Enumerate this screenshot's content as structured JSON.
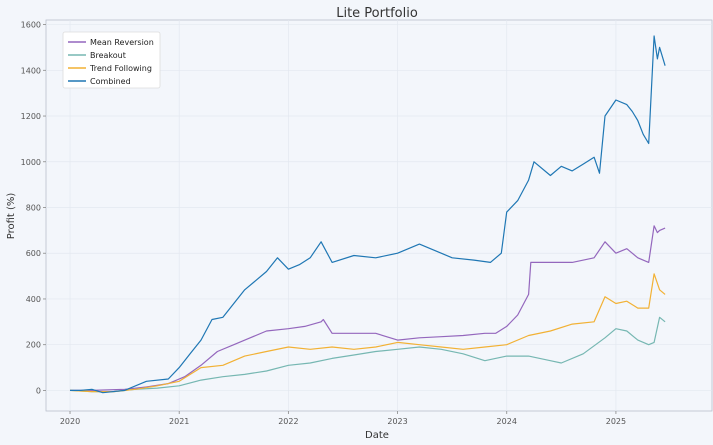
{
  "chart_data": {
    "type": "line",
    "title": "Lite Portfolio",
    "xlabel": "Date",
    "ylabel": "Profit (%)",
    "xlim": [
      2019.78,
      2025.88
    ],
    "ylim": [
      -90,
      1620
    ],
    "x_ticks": [
      {
        "value": 2020,
        "label": "2020"
      },
      {
        "value": 2021,
        "label": "2021"
      },
      {
        "value": 2022,
        "label": "2022"
      },
      {
        "value": 2023,
        "label": "2023"
      },
      {
        "value": 2024,
        "label": "2024"
      },
      {
        "value": 2025,
        "label": "2025"
      }
    ],
    "y_ticks": [
      {
        "value": 0,
        "label": "0"
      },
      {
        "value": 200,
        "label": "200"
      },
      {
        "value": 400,
        "label": "400"
      },
      {
        "value": 600,
        "label": "600"
      },
      {
        "value": 800,
        "label": "800"
      },
      {
        "value": 1000,
        "label": "1000"
      },
      {
        "value": 1200,
        "label": "1200"
      },
      {
        "value": 1400,
        "label": "1400"
      },
      {
        "value": 1600,
        "label": "1600"
      }
    ],
    "grid": true,
    "legend_position": "top-left",
    "series": [
      {
        "name": "Mean Reversion",
        "color": "#9467bd",
        "x": [
          2020.0,
          2020.2,
          2020.5,
          2020.7,
          2020.9,
          2021.05,
          2021.2,
          2021.35,
          2021.5,
          2021.65,
          2021.8,
          2022.0,
          2022.15,
          2022.3,
          2022.32,
          2022.4,
          2022.6,
          2022.8,
          2023.0,
          2023.2,
          2023.4,
          2023.6,
          2023.8,
          2023.9,
          2024.0,
          2024.1,
          2024.2,
          2024.22,
          2024.4,
          2024.6,
          2024.8,
          2024.9,
          2025.0,
          2025.1,
          2025.2,
          2025.3,
          2025.35,
          2025.38,
          2025.4,
          2025.45
        ],
        "y": [
          0,
          0,
          5,
          15,
          30,
          60,
          110,
          170,
          200,
          230,
          260,
          270,
          280,
          300,
          310,
          250,
          250,
          250,
          220,
          230,
          235,
          240,
          250,
          250,
          280,
          330,
          420,
          560,
          560,
          560,
          580,
          650,
          600,
          620,
          580,
          560,
          720,
          690,
          700,
          710
        ]
      },
      {
        "name": "Breakout",
        "color": "#76b7b2",
        "x": [
          2020.0,
          2020.2,
          2020.4,
          2020.6,
          2020.8,
          2021.0,
          2021.2,
          2021.4,
          2021.6,
          2021.8,
          2022.0,
          2022.2,
          2022.4,
          2022.6,
          2022.8,
          2023.0,
          2023.2,
          2023.4,
          2023.6,
          2023.8,
          2024.0,
          2024.2,
          2024.4,
          2024.5,
          2024.7,
          2024.9,
          2025.0,
          2025.1,
          2025.2,
          2025.3,
          2025.35,
          2025.4,
          2025.45
        ],
        "y": [
          0,
          -5,
          -5,
          5,
          10,
          20,
          45,
          60,
          70,
          85,
          110,
          120,
          140,
          155,
          170,
          180,
          190,
          180,
          160,
          130,
          150,
          150,
          130,
          120,
          160,
          230,
          270,
          260,
          220,
          200,
          210,
          320,
          300
        ]
      },
      {
        "name": "Trend Following",
        "color": "#f2b134",
        "x": [
          2020.0,
          2020.2,
          2020.4,
          2020.6,
          2020.8,
          2021.0,
          2021.2,
          2021.4,
          2021.6,
          2021.8,
          2022.0,
          2022.2,
          2022.4,
          2022.6,
          2022.8,
          2023.0,
          2023.2,
          2023.4,
          2023.6,
          2023.8,
          2024.0,
          2024.2,
          2024.4,
          2024.6,
          2024.8,
          2024.9,
          2025.0,
          2025.1,
          2025.2,
          2025.3,
          2025.35,
          2025.4,
          2025.45
        ],
        "y": [
          0,
          -5,
          -5,
          5,
          20,
          40,
          100,
          110,
          150,
          170,
          190,
          180,
          190,
          180,
          190,
          210,
          200,
          190,
          180,
          190,
          200,
          240,
          260,
          290,
          300,
          410,
          380,
          390,
          360,
          360,
          510,
          440,
          420
        ]
      },
      {
        "name": "Combined",
        "color": "#1f77b4",
        "x": [
          2020.0,
          2020.1,
          2020.2,
          2020.3,
          2020.5,
          2020.7,
          2020.9,
          2021.0,
          2021.1,
          2021.2,
          2021.3,
          2021.4,
          2021.5,
          2021.6,
          2021.7,
          2021.8,
          2021.9,
          2022.0,
          2022.1,
          2022.2,
          2022.3,
          2022.4,
          2022.6,
          2022.8,
          2023.0,
          2023.2,
          2023.4,
          2023.5,
          2023.7,
          2023.85,
          2023.95,
          2024.0,
          2024.1,
          2024.2,
          2024.25,
          2024.4,
          2024.5,
          2024.6,
          2024.7,
          2024.8,
          2024.85,
          2024.9,
          2025.0,
          2025.1,
          2025.15,
          2025.2,
          2025.25,
          2025.3,
          2025.35,
          2025.38,
          2025.4,
          2025.45
        ],
        "y": [
          0,
          0,
          5,
          -10,
          0,
          40,
          50,
          100,
          160,
          220,
          310,
          320,
          380,
          440,
          480,
          520,
          580,
          530,
          550,
          580,
          650,
          560,
          590,
          580,
          600,
          640,
          600,
          580,
          570,
          560,
          600,
          780,
          830,
          920,
          1000,
          940,
          980,
          960,
          990,
          1020,
          950,
          1200,
          1270,
          1250,
          1220,
          1180,
          1120,
          1080,
          1550,
          1450,
          1500,
          1420
        ]
      }
    ]
  }
}
